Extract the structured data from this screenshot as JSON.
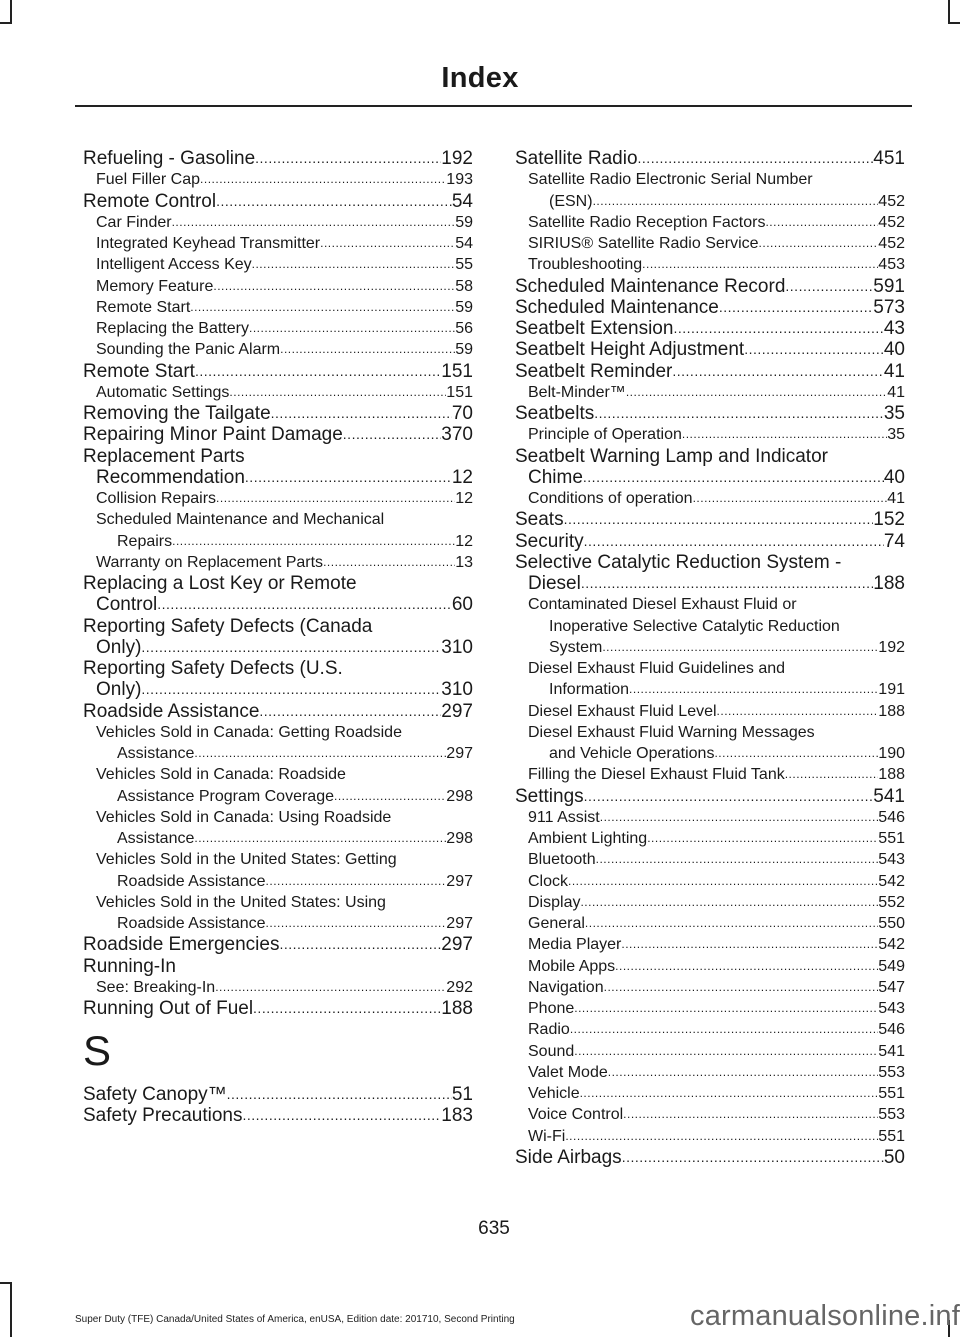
{
  "header": {
    "title": "Index"
  },
  "columns": [
    {
      "sections": [
        {
          "entries": [
            {
              "level": "main",
              "lines": [
                "Refueling - Gasoline"
              ],
              "page": "192"
            },
            {
              "level": "sub",
              "lines": [
                "Fuel Filler Cap"
              ],
              "page": "193"
            },
            {
              "level": "main",
              "lines": [
                "Remote Control"
              ],
              "page": "54"
            },
            {
              "level": "sub",
              "lines": [
                "Car Finder"
              ],
              "page": "59"
            },
            {
              "level": "sub",
              "lines": [
                "Integrated Keyhead Transmitter"
              ],
              "page": "54"
            },
            {
              "level": "sub",
              "lines": [
                "Intelligent Access Key"
              ],
              "page": "55"
            },
            {
              "level": "sub",
              "lines": [
                "Memory Feature"
              ],
              "page": "58"
            },
            {
              "level": "sub",
              "lines": [
                "Remote Start"
              ],
              "page": "59"
            },
            {
              "level": "sub",
              "lines": [
                "Replacing the Battery"
              ],
              "page": "56"
            },
            {
              "level": "sub",
              "lines": [
                "Sounding the Panic Alarm"
              ],
              "page": "59"
            },
            {
              "level": "main",
              "lines": [
                "Remote Start"
              ],
              "page": "151"
            },
            {
              "level": "sub",
              "lines": [
                "Automatic Settings"
              ],
              "page": "151"
            },
            {
              "level": "main",
              "lines": [
                "Removing the Tailgate"
              ],
              "page": "70"
            },
            {
              "level": "main",
              "lines": [
                "Repairing Minor Paint Damage"
              ],
              "page": "370"
            },
            {
              "level": "main",
              "lines": [
                "Replacement Parts",
                "Recommendation"
              ],
              "page": "12"
            },
            {
              "level": "sub",
              "lines": [
                "Collision Repairs"
              ],
              "page": "12"
            },
            {
              "level": "sub",
              "lines": [
                "Scheduled Maintenance and Mechanical",
                "Repairs"
              ],
              "page": "12"
            },
            {
              "level": "sub",
              "lines": [
                "Warranty on Replacement Parts"
              ],
              "page": "13"
            },
            {
              "level": "main",
              "lines": [
                "Replacing a Lost Key or Remote",
                "Control"
              ],
              "page": "60"
            },
            {
              "level": "main",
              "lines": [
                "Reporting Safety Defects (Canada",
                "Only)"
              ],
              "page": "310"
            },
            {
              "level": "main",
              "lines": [
                "Reporting Safety Defects (U.S.",
                "Only)"
              ],
              "page": "310"
            },
            {
              "level": "main",
              "lines": [
                "Roadside Assistance"
              ],
              "page": "297"
            },
            {
              "level": "sub",
              "lines": [
                "Vehicles Sold in Canada: Getting Roadside",
                "Assistance"
              ],
              "page": "297"
            },
            {
              "level": "sub",
              "lines": [
                "Vehicles Sold in Canada: Roadside",
                "Assistance Program Coverage"
              ],
              "page": "298"
            },
            {
              "level": "sub",
              "lines": [
                "Vehicles Sold in Canada: Using Roadside",
                "Assistance"
              ],
              "page": "298"
            },
            {
              "level": "sub",
              "lines": [
                "Vehicles Sold in the United States: Getting",
                "Roadside Assistance"
              ],
              "page": "297"
            },
            {
              "level": "sub",
              "lines": [
                "Vehicles Sold in the United States: Using",
                "Roadside Assistance"
              ],
              "page": "297"
            },
            {
              "level": "main",
              "lines": [
                "Roadside Emergencies"
              ],
              "page": "297"
            },
            {
              "level": "main",
              "lines": [
                "Running-In"
              ],
              "page": ""
            },
            {
              "level": "sub",
              "lines": [
                "See: Breaking-In"
              ],
              "page": "292"
            },
            {
              "level": "main",
              "lines": [
                "Running Out of Fuel"
              ],
              "page": "188"
            }
          ]
        },
        {
          "letter": "S",
          "entries": [
            {
              "level": "main",
              "lines": [
                "Safety Canopy™"
              ],
              "page": "51"
            },
            {
              "level": "main",
              "lines": [
                "Safety Precautions"
              ],
              "page": "183"
            }
          ]
        }
      ]
    },
    {
      "sections": [
        {
          "entries": [
            {
              "level": "main",
              "lines": [
                "Satellite Radio"
              ],
              "page": "451"
            },
            {
              "level": "sub",
              "lines": [
                "Satellite Radio Electronic Serial Number",
                "(ESN)"
              ],
              "page": "452"
            },
            {
              "level": "sub",
              "lines": [
                "Satellite Radio Reception Factors"
              ],
              "page": "452"
            },
            {
              "level": "sub",
              "lines": [
                "SIRIUS® Satellite Radio Service"
              ],
              "page": "452"
            },
            {
              "level": "sub",
              "lines": [
                "Troubleshooting"
              ],
              "page": "453"
            },
            {
              "level": "main",
              "lines": [
                "Scheduled Maintenance Record"
              ],
              "page": "591"
            },
            {
              "level": "main",
              "lines": [
                "Scheduled Maintenance"
              ],
              "page": "573"
            },
            {
              "level": "main",
              "lines": [
                "Seatbelt Extension"
              ],
              "page": "43"
            },
            {
              "level": "main",
              "lines": [
                "Seatbelt Height Adjustment"
              ],
              "page": "40"
            },
            {
              "level": "main",
              "lines": [
                "Seatbelt Reminder"
              ],
              "page": "41"
            },
            {
              "level": "sub",
              "lines": [
                "Belt-Minder™"
              ],
              "page": "41"
            },
            {
              "level": "main",
              "lines": [
                "Seatbelts"
              ],
              "page": "35"
            },
            {
              "level": "sub",
              "lines": [
                "Principle of Operation"
              ],
              "page": "35"
            },
            {
              "level": "main",
              "lines": [
                "Seatbelt Warning Lamp and Indicator",
                "Chime"
              ],
              "page": "40"
            },
            {
              "level": "sub",
              "lines": [
                "Conditions of operation"
              ],
              "page": "41"
            },
            {
              "level": "main",
              "lines": [
                "Seats"
              ],
              "page": "152"
            },
            {
              "level": "main",
              "lines": [
                "Security"
              ],
              "page": "74"
            },
            {
              "level": "main",
              "lines": [
                "Selective Catalytic Reduction System -",
                "Diesel"
              ],
              "page": "188"
            },
            {
              "level": "sub",
              "lines": [
                "Contaminated Diesel Exhaust Fluid or",
                "Inoperative Selective Catalytic Reduction",
                "System"
              ],
              "page": "192"
            },
            {
              "level": "sub",
              "lines": [
                "Diesel Exhaust Fluid Guidelines and",
                "Information"
              ],
              "page": "191"
            },
            {
              "level": "sub",
              "lines": [
                "Diesel Exhaust Fluid Level"
              ],
              "page": "188"
            },
            {
              "level": "sub",
              "lines": [
                "Diesel Exhaust Fluid Warning Messages",
                "and Vehicle Operations"
              ],
              "page": "190"
            },
            {
              "level": "sub",
              "lines": [
                "Filling the Diesel Exhaust Fluid Tank"
              ],
              "page": "188"
            },
            {
              "level": "main",
              "lines": [
                "Settings"
              ],
              "page": "541"
            },
            {
              "level": "sub",
              "lines": [
                "911 Assist"
              ],
              "page": "546"
            },
            {
              "level": "sub",
              "lines": [
                "Ambient Lighting"
              ],
              "page": "551"
            },
            {
              "level": "sub",
              "lines": [
                "Bluetooth"
              ],
              "page": "543"
            },
            {
              "level": "sub",
              "lines": [
                "Clock"
              ],
              "page": "542"
            },
            {
              "level": "sub",
              "lines": [
                "Display"
              ],
              "page": "552"
            },
            {
              "level": "sub",
              "lines": [
                "General"
              ],
              "page": "550"
            },
            {
              "level": "sub",
              "lines": [
                "Media Player"
              ],
              "page": "542"
            },
            {
              "level": "sub",
              "lines": [
                "Mobile Apps"
              ],
              "page": "549"
            },
            {
              "level": "sub",
              "lines": [
                "Navigation"
              ],
              "page": "547"
            },
            {
              "level": "sub",
              "lines": [
                "Phone"
              ],
              "page": "543"
            },
            {
              "level": "sub",
              "lines": [
                "Radio"
              ],
              "page": "546"
            },
            {
              "level": "sub",
              "lines": [
                "Sound"
              ],
              "page": "541"
            },
            {
              "level": "sub",
              "lines": [
                "Valet Mode"
              ],
              "page": "553"
            },
            {
              "level": "sub",
              "lines": [
                "Vehicle"
              ],
              "page": "551"
            },
            {
              "level": "sub",
              "lines": [
                "Voice Control"
              ],
              "page": "553"
            },
            {
              "level": "sub",
              "lines": [
                "Wi-Fi"
              ],
              "page": "551"
            },
            {
              "level": "main",
              "lines": [
                "Side Airbags"
              ],
              "page": "50"
            }
          ]
        }
      ]
    }
  ],
  "page_number": "635",
  "footer": {
    "edition_text": "Super Duty (TFE) Canada/United States of America, enUSA, Edition date: 201710, Second Printing"
  },
  "watermark": "carmanualsonline.info"
}
